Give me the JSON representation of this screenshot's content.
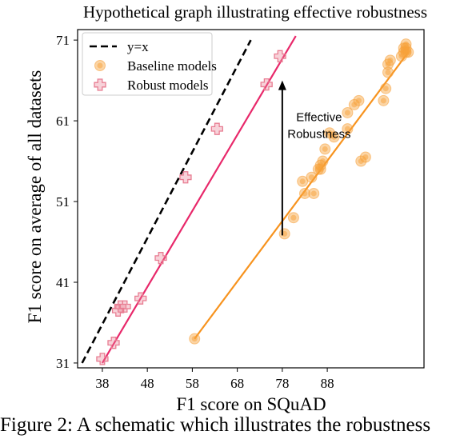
{
  "chart_data": {
    "type": "scatter",
    "title": "Hypothetical graph illustrating effective robustness",
    "xlabel": "F1 score on SQuAD",
    "ylabel": "F1 score on average of all datasets",
    "xlim": [
      32.5,
      109.5
    ],
    "ylim": [
      30.4,
      72.3
    ],
    "x_ticks": [
      "38",
      "48",
      "58",
      "68",
      "78",
      "88"
    ],
    "y_ticks": [
      "31",
      "41",
      "51",
      "61",
      "71"
    ],
    "legend_position": "top-left",
    "legend": [
      "y=x",
      "Baseline models",
      "Robust models"
    ],
    "annotation": {
      "text": [
        "Effective",
        "Robustness"
      ],
      "arrow_from": [
        78,
        46.8
      ],
      "arrow_to": [
        78,
        66.0
      ]
    },
    "series": [
      {
        "name": "y=x",
        "kind": "line",
        "color": "#000000",
        "style": "dashed",
        "x": [
          33.5,
          71.0
        ],
        "y": [
          31.0,
          71.0
        ]
      },
      {
        "name": "Baseline models",
        "kind": "scatter",
        "color": "#f7a13a",
        "marker": "circle",
        "x": [
          58.5,
          78.5,
          80.5,
          82.5,
          83.0,
          84.5,
          85.0,
          86.0,
          86.5,
          86.5,
          87.0,
          87.5,
          88.5,
          89.5,
          92.5,
          92.5,
          94.0,
          95.0,
          95.5,
          96.5,
          100.5,
          101.0,
          101.5,
          101.5,
          102.0,
          104.5,
          105.0,
          105.0,
          105.5,
          105.5,
          105.5,
          106.0
        ],
        "y": [
          34.0,
          47.0,
          49.0,
          53.5,
          52.0,
          54.0,
          52.0,
          55.0,
          55.5,
          55.0,
          56.0,
          57.5,
          59.5,
          59.0,
          62.0,
          60.0,
          63.0,
          63.5,
          56.0,
          56.5,
          63.5,
          65.0,
          67.0,
          68.0,
          68.5,
          69.0,
          69.5,
          70.0,
          69.5,
          70.5,
          70.0,
          69.5
        ]
      },
      {
        "name": "Baseline fit",
        "kind": "line",
        "color": "#f7931e",
        "style": "solid",
        "x": [
          58.5,
          106.0
        ],
        "y": [
          34.0,
          69.5
        ]
      },
      {
        "name": "Robust models",
        "kind": "scatter",
        "color": "#e87d92",
        "marker": "plus",
        "x": [
          38.0,
          40.5,
          41.5,
          42.0,
          43.0,
          46.5,
          51.0,
          56.5,
          63.5,
          74.5,
          77.5
        ],
        "y": [
          31.5,
          33.5,
          37.5,
          38.0,
          38.0,
          39.0,
          44.0,
          54.0,
          60.0,
          65.5,
          69.0
        ]
      },
      {
        "name": "Robust fit",
        "kind": "line",
        "color": "#e8286a",
        "style": "solid",
        "x": [
          38.0,
          81.0
        ],
        "y": [
          31.0,
          71.5
        ]
      }
    ]
  },
  "caption": "Figure 2: A schematic which illustrates the robustness"
}
